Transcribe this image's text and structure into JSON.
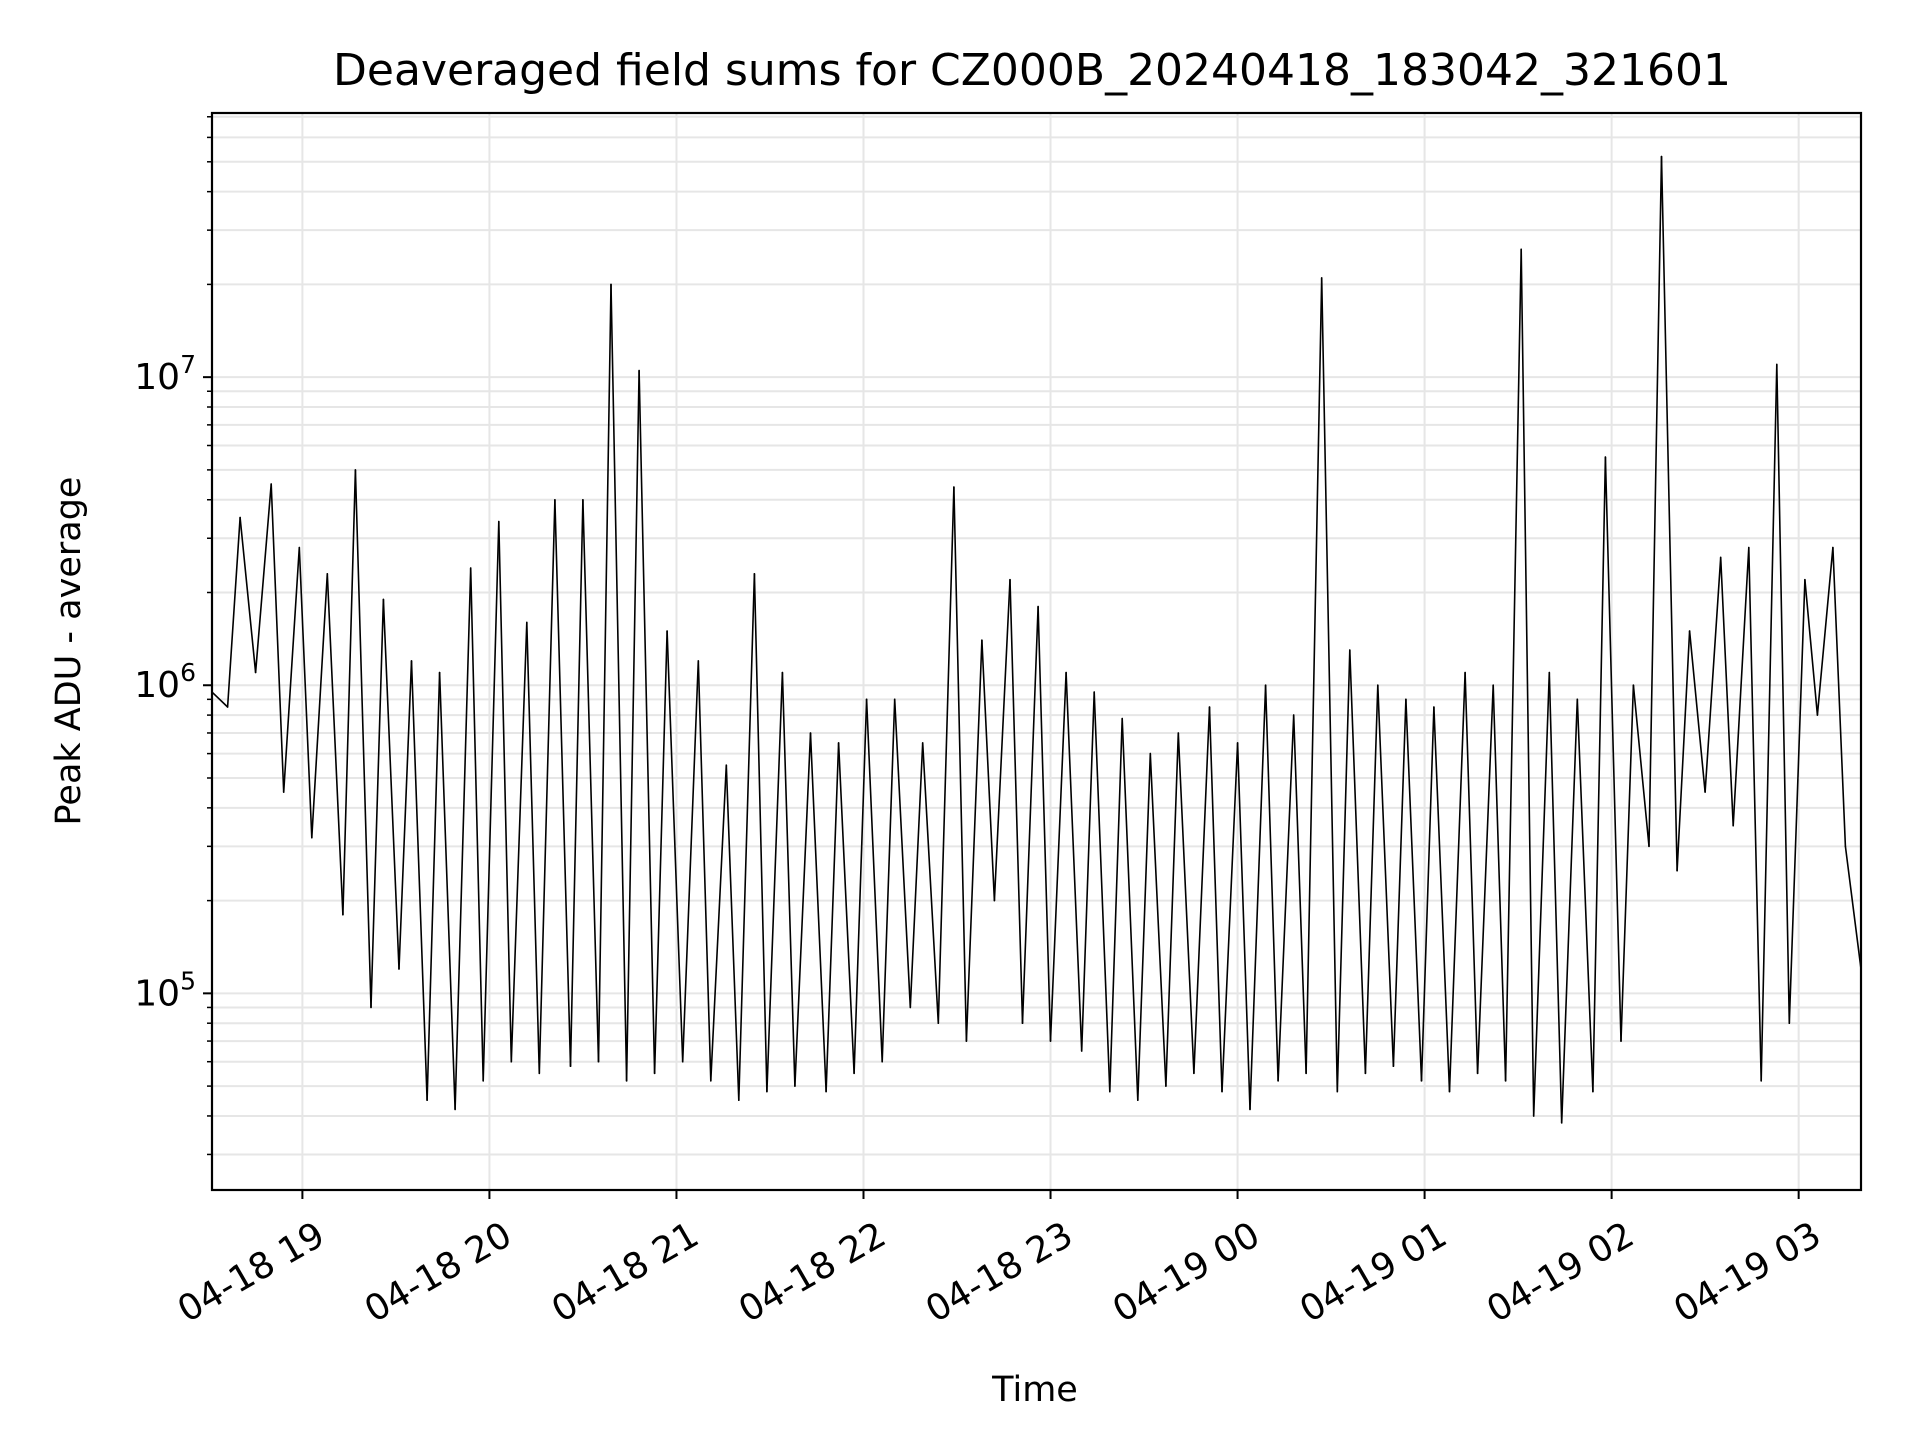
{
  "chart_data": {
    "type": "line",
    "title": "Deaveraged field sums for CZ000B_20240418_183042_321601",
    "xlabel": "Time",
    "ylabel": "Peak ADU - average",
    "y_scale": "log",
    "x_range": [
      "04-18 18:31",
      "04-19 03:20"
    ],
    "ylim": [
      23000,
      72000000
    ],
    "grid": true,
    "line_color": "#000000",
    "grid_color": "#e6e6e6",
    "x_ticks": [
      "04-18 19",
      "04-18 20",
      "04-18 21",
      "04-18 22",
      "04-18 23",
      "04-19 00",
      "04-19 01",
      "04-19 02",
      "04-19 03"
    ],
    "y_ticks": [
      {
        "base": "10",
        "exp": "5",
        "value": 100000
      },
      {
        "base": "10",
        "exp": "6",
        "value": 1000000
      },
      {
        "base": "10",
        "exp": "7",
        "value": 10000000
      }
    ],
    "series": [
      {
        "x": [
          "04-18 18:31",
          "04-18 18:36",
          "04-18 18:40",
          "04-18 18:45",
          "04-18 18:50",
          "04-18 18:54",
          "04-18 18:59",
          "04-18 19:03",
          "04-18 19:08",
          "04-18 19:13",
          "04-18 19:17",
          "04-18 19:22",
          "04-18 19:26",
          "04-18 19:31",
          "04-18 19:35",
          "04-18 19:40",
          "04-18 19:44",
          "04-18 19:49",
          "04-18 19:54",
          "04-18 19:58",
          "04-18 20:03",
          "04-18 20:07",
          "04-18 20:12",
          "04-18 20:16",
          "04-18 20:21",
          "04-18 20:26",
          "04-18 20:30",
          "04-18 20:35",
          "04-18 20:39",
          "04-18 20:44",
          "04-18 20:48",
          "04-18 20:53",
          "04-18 20:57",
          "04-18 21:02",
          "04-18 21:07",
          "04-18 21:11",
          "04-18 21:16",
          "04-18 21:20",
          "04-18 21:25",
          "04-18 21:29",
          "04-18 21:34",
          "04-18 21:38",
          "04-18 21:43",
          "04-18 21:48",
          "04-18 21:52",
          "04-18 21:57",
          "04-18 22:01",
          "04-18 22:06",
          "04-18 22:10",
          "04-18 22:15",
          "04-18 22:19",
          "04-18 22:24",
          "04-18 22:29",
          "04-18 22:33",
          "04-18 22:38",
          "04-18 22:42",
          "04-18 22:47",
          "04-18 22:51",
          "04-18 22:56",
          "04-18 23:00",
          "04-18 23:05",
          "04-18 23:10",
          "04-18 23:14",
          "04-18 23:19",
          "04-18 23:23",
          "04-18 23:28",
          "04-18 23:32",
          "04-18 23:37",
          "04-18 23:41",
          "04-18 23:46",
          "04-18 23:51",
          "04-18 23:55",
          "04-19 00:00",
          "04-19 00:04",
          "04-19 00:09",
          "04-19 00:13",
          "04-19 00:18",
          "04-19 00:22",
          "04-19 00:27",
          "04-19 00:32",
          "04-19 00:36",
          "04-19 00:41",
          "04-19 00:45",
          "04-19 00:50",
          "04-19 00:54",
          "04-19 00:59",
          "04-19 01:03",
          "04-19 01:08",
          "04-19 01:13",
          "04-19 01:17",
          "04-19 01:22",
          "04-19 01:26",
          "04-19 01:31",
          "04-19 01:35",
          "04-19 01:40",
          "04-19 01:44",
          "04-19 01:49",
          "04-19 01:54",
          "04-19 01:58",
          "04-19 02:03",
          "04-19 02:07",
          "04-19 02:12",
          "04-19 02:16",
          "04-19 02:21",
          "04-19 02:25",
          "04-19 02:30",
          "04-19 02:35",
          "04-19 02:39",
          "04-19 02:44",
          "04-19 02:48",
          "04-19 02:53",
          "04-19 02:57",
          "04-19 03:02",
          "04-19 03:06",
          "04-19 03:11",
          "04-19 03:15",
          "04-19 03:20"
        ],
        "values": [
          950000,
          850000,
          3500000,
          1100000,
          4500000,
          450000,
          2800000,
          320000,
          2300000,
          180000,
          5000000,
          90000,
          1900000,
          120000,
          1200000,
          45000,
          1100000,
          42000,
          2400000,
          52000,
          3400000,
          60000,
          1600000,
          55000,
          4000000,
          58000,
          4000000,
          60000,
          20000000,
          52000,
          10500000,
          55000,
          1500000,
          60000,
          1200000,
          52000,
          550000,
          45000,
          2300000,
          48000,
          1100000,
          50000,
          700000,
          48000,
          650000,
          55000,
          900000,
          60000,
          900000,
          90000,
          650000,
          80000,
          4400000,
          70000,
          1400000,
          200000,
          2200000,
          80000,
          1800000,
          70000,
          1100000,
          65000,
          950000,
          48000,
          780000,
          45000,
          600000,
          50000,
          700000,
          55000,
          850000,
          48000,
          650000,
          42000,
          1000000,
          52000,
          800000,
          55000,
          21000000,
          48000,
          1300000,
          55000,
          1000000,
          58000,
          900000,
          52000,
          850000,
          48000,
          1100000,
          55000,
          1000000,
          52000,
          26000000,
          40000,
          1100000,
          38000,
          900000,
          48000,
          5500000,
          70000,
          1000000,
          300000,
          52000000,
          250000,
          1500000,
          450000,
          2600000,
          350000,
          2800000,
          52000,
          11000000,
          80000,
          2200000,
          800000,
          2800000,
          300000,
          120000
        ]
      }
    ]
  }
}
